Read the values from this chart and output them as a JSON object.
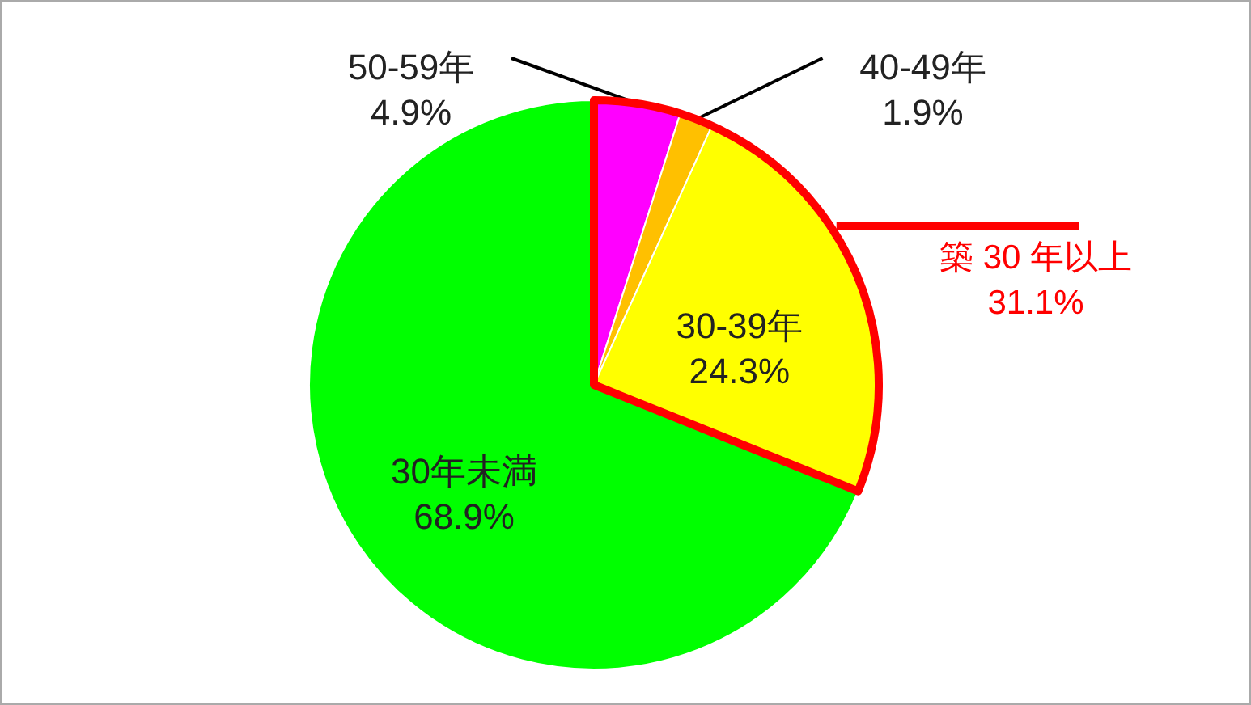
{
  "chart_data": {
    "type": "pie",
    "categories": [
      "50-59年",
      "40-49年",
      "30-39年",
      "30年未満"
    ],
    "values": [
      4.9,
      1.9,
      24.3,
      68.9
    ],
    "colors": [
      "#ff00ff",
      "#ffc000",
      "#ffff00",
      "#00ff00"
    ],
    "value_labels": [
      "4.9%",
      "1.9%",
      "24.3%",
      "68.9%"
    ],
    "annotations": [
      "築 30 年以上\n31.1%"
    ]
  }
}
